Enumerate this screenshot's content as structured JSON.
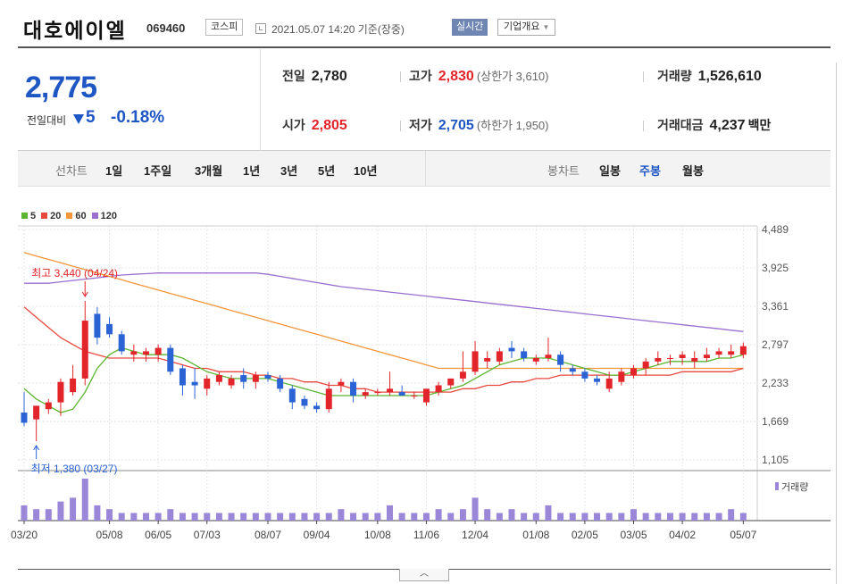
{
  "header": {
    "stock_name": "대호에이엘",
    "stock_code": "069460",
    "market": "코스피",
    "time_text": "2021.05.07 14:20 기준(장중)",
    "realtime_label": "실시간",
    "overview_label": "기업개요"
  },
  "summary": {
    "current_price": "2,775",
    "change_label": "전일대비",
    "change_amount": "5",
    "change_percent": "-0.18%",
    "prev_close_label": "전일",
    "prev_close": "2,780",
    "high_label": "고가",
    "high": "2,830",
    "upper_limit": "(상한가 3,610)",
    "volume_label": "거래량",
    "volume": "1,526,610",
    "open_label": "시가",
    "open": "2,805",
    "low_label": "저가",
    "low": "2,705",
    "lower_limit": "(하한가 1,950)",
    "trade_value_label": "거래대금",
    "trade_value": "4,237",
    "trade_value_unit": "백만"
  },
  "period_tabs": {
    "line_label": "선차트",
    "items": [
      "1일",
      "1주일",
      "3개월",
      "1년",
      "3년",
      "5년",
      "10년"
    ],
    "candle_label": "봉차트",
    "candle_items": [
      "일봉",
      "주봉",
      "월봉"
    ],
    "active_candle": "주봉"
  },
  "chart_data": {
    "type": "candlestick",
    "legend": [
      {
        "name": "5",
        "color": "#5cb531"
      },
      {
        "name": "20",
        "color": "#e7493f"
      },
      {
        "name": "60",
        "color": "#f2953c"
      },
      {
        "name": "120",
        "color": "#9b6fcf"
      }
    ],
    "y_ticks": [
      "4,489",
      "3,925",
      "3,361",
      "2,797",
      "2,233",
      "1,669",
      "1,105"
    ],
    "ylim": [
      1105,
      4489
    ],
    "x_ticks": [
      "03/20",
      "05/08",
      "06/05",
      "07/03",
      "08/07",
      "09/04",
      "10/08",
      "11/06",
      "12/04",
      "01/08",
      "02/05",
      "03/05",
      "04/02",
      "05/07"
    ],
    "x_tick_index": [
      0,
      7,
      11,
      15,
      20,
      24,
      29,
      33,
      37,
      42,
      46,
      50,
      54,
      59
    ],
    "max_annotation": "최고 3,440 (04/24)",
    "max_index": 5,
    "max_value": 3440,
    "min_annotation": "최저 1,380 (03/27)",
    "min_index": 1,
    "min_value": 1380,
    "volume_label": "거래량",
    "candles": [
      {
        "o": 1800,
        "h": 2100,
        "l": 1600,
        "c": 1650
      },
      {
        "o": 1700,
        "h": 1900,
        "l": 1380,
        "c": 1900
      },
      {
        "o": 1850,
        "h": 2000,
        "l": 1780,
        "c": 1950
      },
      {
        "o": 1950,
        "h": 2300,
        "l": 1750,
        "c": 2250
      },
      {
        "o": 2100,
        "h": 2500,
        "l": 2050,
        "c": 2300
      },
      {
        "o": 2300,
        "h": 3440,
        "l": 2200,
        "c": 3150
      },
      {
        "o": 3250,
        "h": 3350,
        "l": 2800,
        "c": 2900
      },
      {
        "o": 3100,
        "h": 3200,
        "l": 2900,
        "c": 2950
      },
      {
        "o": 2950,
        "h": 3000,
        "l": 2650,
        "c": 2700
      },
      {
        "o": 2650,
        "h": 2800,
        "l": 2550,
        "c": 2700
      },
      {
        "o": 2650,
        "h": 2750,
        "l": 2550,
        "c": 2700
      },
      {
        "o": 2650,
        "h": 2800,
        "l": 2550,
        "c": 2750
      },
      {
        "o": 2750,
        "h": 2800,
        "l": 2350,
        "c": 2400
      },
      {
        "o": 2450,
        "h": 2500,
        "l": 2050,
        "c": 2200
      },
      {
        "o": 2250,
        "h": 2450,
        "l": 2000,
        "c": 2200
      },
      {
        "o": 2150,
        "h": 2350,
        "l": 2050,
        "c": 2300
      },
      {
        "o": 2250,
        "h": 2400,
        "l": 2200,
        "c": 2350
      },
      {
        "o": 2200,
        "h": 2350,
        "l": 2150,
        "c": 2300
      },
      {
        "o": 2350,
        "h": 2450,
        "l": 2150,
        "c": 2250
      },
      {
        "o": 2250,
        "h": 2400,
        "l": 2150,
        "c": 2350
      },
      {
        "o": 2350,
        "h": 2400,
        "l": 2250,
        "c": 2300
      },
      {
        "o": 2300,
        "h": 2350,
        "l": 2100,
        "c": 2150
      },
      {
        "o": 2150,
        "h": 2200,
        "l": 1850,
        "c": 1950
      },
      {
        "o": 2000,
        "h": 2050,
        "l": 1850,
        "c": 1900
      },
      {
        "o": 1900,
        "h": 1950,
        "l": 1800,
        "c": 1850
      },
      {
        "o": 1850,
        "h": 2250,
        "l": 1800,
        "c": 2150
      },
      {
        "o": 2200,
        "h": 2300,
        "l": 2100,
        "c": 2250
      },
      {
        "o": 2250,
        "h": 2300,
        "l": 1950,
        "c": 2050
      },
      {
        "o": 2050,
        "h": 2150,
        "l": 2000,
        "c": 2100
      },
      {
        "o": 2100,
        "h": 2150,
        "l": 2050,
        "c": 2100
      },
      {
        "o": 2100,
        "h": 2400,
        "l": 2050,
        "c": 2150
      },
      {
        "o": 2100,
        "h": 2200,
        "l": 2050,
        "c": 2050
      },
      {
        "o": 2050,
        "h": 2100,
        "l": 2000,
        "c": 2050
      },
      {
        "o": 1950,
        "h": 2150,
        "l": 1900,
        "c": 2150
      },
      {
        "o": 2100,
        "h": 2250,
        "l": 2050,
        "c": 2200
      },
      {
        "o": 2200,
        "h": 2300,
        "l": 2150,
        "c": 2300
      },
      {
        "o": 2300,
        "h": 2700,
        "l": 2250,
        "c": 2400
      },
      {
        "o": 2400,
        "h": 2850,
        "l": 2350,
        "c": 2700
      },
      {
        "o": 2550,
        "h": 2700,
        "l": 2450,
        "c": 2600
      },
      {
        "o": 2550,
        "h": 2750,
        "l": 2500,
        "c": 2700
      },
      {
        "o": 2750,
        "h": 2850,
        "l": 2600,
        "c": 2700
      },
      {
        "o": 2700,
        "h": 2750,
        "l": 2550,
        "c": 2600
      },
      {
        "o": 2550,
        "h": 2650,
        "l": 2500,
        "c": 2600
      },
      {
        "o": 2600,
        "h": 2900,
        "l": 2550,
        "c": 2650
      },
      {
        "o": 2650,
        "h": 2700,
        "l": 2400,
        "c": 2500
      },
      {
        "o": 2450,
        "h": 2500,
        "l": 2350,
        "c": 2400
      },
      {
        "o": 2400,
        "h": 2450,
        "l": 2250,
        "c": 2300
      },
      {
        "o": 2300,
        "h": 2350,
        "l": 2200,
        "c": 2250
      },
      {
        "o": 2150,
        "h": 2400,
        "l": 2100,
        "c": 2300
      },
      {
        "o": 2250,
        "h": 2450,
        "l": 2200,
        "c": 2400
      },
      {
        "o": 2350,
        "h": 2500,
        "l": 2300,
        "c": 2450
      },
      {
        "o": 2450,
        "h": 2600,
        "l": 2350,
        "c": 2550
      },
      {
        "o": 2550,
        "h": 2700,
        "l": 2500,
        "c": 2600
      },
      {
        "o": 2600,
        "h": 2650,
        "l": 2500,
        "c": 2600
      },
      {
        "o": 2600,
        "h": 2700,
        "l": 2500,
        "c": 2650
      },
      {
        "o": 2550,
        "h": 2700,
        "l": 2450,
        "c": 2600
      },
      {
        "o": 2600,
        "h": 2750,
        "l": 2550,
        "c": 2650
      },
      {
        "o": 2650,
        "h": 2750,
        "l": 2600,
        "c": 2700
      },
      {
        "o": 2650,
        "h": 2800,
        "l": 2600,
        "c": 2700
      },
      {
        "o": 2650,
        "h": 2830,
        "l": 2600,
        "c": 2775
      }
    ],
    "volume": [
      4,
      3,
      3,
      5,
      6,
      11,
      4,
      3,
      2,
      2,
      2,
      2,
      3,
      2,
      2,
      2,
      2,
      2,
      2,
      2,
      2,
      2,
      2,
      2,
      2,
      2,
      3,
      2,
      2,
      2,
      4,
      2,
      2,
      2,
      3,
      2,
      3,
      6,
      3,
      2,
      3,
      2,
      2,
      4,
      2,
      2,
      2,
      2,
      2,
      2,
      3,
      2,
      2,
      2,
      2,
      2,
      2,
      2,
      3,
      2
    ],
    "ma5": [
      2150,
      2000,
      1900,
      1800,
      1850,
      2100,
      2450,
      2650,
      2750,
      2700,
      2650,
      2650,
      2650,
      2600,
      2500,
      2400,
      2350,
      2300,
      2300,
      2300,
      2300,
      2250,
      2200,
      2150,
      2100,
      2050,
      2050,
      2050,
      2050,
      2050,
      2050,
      2050,
      2050,
      2050,
      2100,
      2150,
      2200,
      2300,
      2400,
      2500,
      2550,
      2600,
      2600,
      2600,
      2550,
      2500,
      2450,
      2400,
      2350,
      2350,
      2400,
      2450,
      2500,
      2550,
      2550,
      2550,
      2550,
      2600,
      2600,
      2650
    ],
    "ma20": [
      3350,
      3200,
      3050,
      2900,
      2800,
      2700,
      2650,
      2600,
      2600,
      2600,
      2600,
      2600,
      2550,
      2500,
      2450,
      2450,
      2400,
      2400,
      2400,
      2350,
      2350,
      2300,
      2300,
      2250,
      2250,
      2200,
      2200,
      2150,
      2150,
      2100,
      2100,
      2100,
      2100,
      2100,
      2100,
      2100,
      2150,
      2150,
      2200,
      2200,
      2250,
      2250,
      2300,
      2300,
      2350,
      2350,
      2350,
      2350,
      2350,
      2350,
      2350,
      2350,
      2350,
      2350,
      2400,
      2400,
      2400,
      2400,
      2400,
      2450
    ],
    "ma60": [
      4150,
      4100,
      4050,
      4000,
      3950,
      3900,
      3850,
      3800,
      3750,
      3700,
      3650,
      3600,
      3550,
      3500,
      3450,
      3400,
      3350,
      3300,
      3250,
      3200,
      3150,
      3100,
      3050,
      3000,
      2950,
      2900,
      2850,
      2800,
      2750,
      2700,
      2650,
      2600,
      2550,
      2500,
      2450,
      2450,
      2450,
      2450,
      2450,
      2450,
      2450,
      2450,
      2450,
      2450,
      2450,
      2450,
      2450,
      2450,
      2450,
      2450,
      2450,
      2450,
      2450,
      2450,
      2450,
      2450,
      2450,
      2450,
      2450,
      2450
    ],
    "ma120": [
      3700,
      3700,
      3700,
      3720,
      3740,
      3760,
      3780,
      3800,
      3820,
      3830,
      3840,
      3850,
      3850,
      3850,
      3850,
      3850,
      3850,
      3850,
      3850,
      3850,
      3830,
      3800,
      3770,
      3740,
      3710,
      3680,
      3650,
      3630,
      3610,
      3590,
      3570,
      3550,
      3530,
      3510,
      3490,
      3470,
      3450,
      3430,
      3410,
      3390,
      3370,
      3350,
      3330,
      3310,
      3290,
      3270,
      3250,
      3230,
      3210,
      3190,
      3170,
      3150,
      3130,
      3110,
      3090,
      3070,
      3050,
      3030,
      3010,
      2990
    ]
  }
}
